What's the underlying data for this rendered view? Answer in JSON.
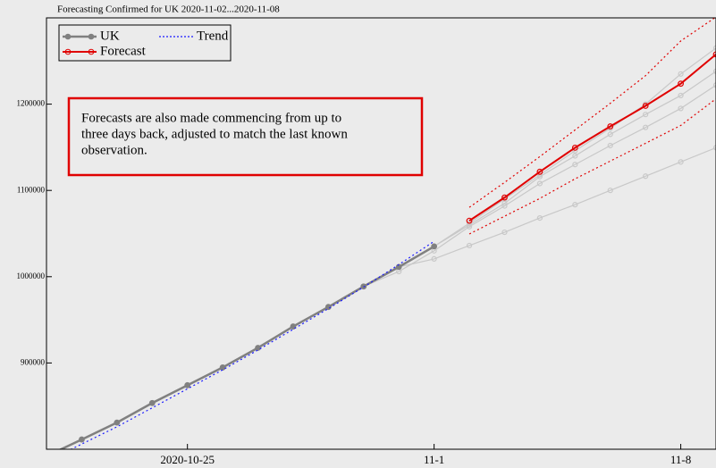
{
  "chart_data": {
    "type": "line",
    "title": "Forecasting Confirmed for UK 2020-11-02...2020-11-08",
    "annotation": [
      "Forecasts are also made commencing from up to",
      "three days back, adjusted to match the last known",
      "observation."
    ],
    "x": [
      "2020-10-21",
      "2020-10-22",
      "2020-10-23",
      "2020-10-24",
      "2020-10-25",
      "2020-10-26",
      "2020-10-27",
      "2020-10-28",
      "2020-10-29",
      "2020-10-30",
      "2020-10-31",
      "2020-11-01",
      "2020-11-02",
      "2020-11-03",
      "2020-11-04",
      "2020-11-05",
      "2020-11-06",
      "2020-11-07",
      "2020-11-08",
      "2020-11-09"
    ],
    "xlim": [
      "2020-10-21",
      "2020-11-09"
    ],
    "xticks": [
      "2020-10-25",
      {
        "value": "2020-11-01",
        "label": "11-1"
      },
      {
        "value": "2020-11-08",
        "label": "11-8"
      }
    ],
    "ylim": [
      800000,
      1300000
    ],
    "yticks": [
      900000,
      1000000,
      1100000,
      1200000
    ],
    "series": [
      {
        "color": "#c8c8c8",
        "marker": true,
        "values": [
          null,
          null,
          null,
          null,
          null,
          null,
          null,
          null,
          null,
          null,
          1011300,
          1020600,
          1036100,
          1051500,
          1068000,
          1083500,
          1100000,
          1116500,
          1133000,
          1149500
        ]
      },
      {
        "color": "#c8c8c8",
        "marker": true,
        "values": [
          null,
          null,
          null,
          null,
          null,
          null,
          null,
          null,
          null,
          988700,
          1006000,
          1030000,
          1058000,
          1082000,
          1108000,
          1130000,
          1152000,
          1173000,
          1195000,
          1222000
        ]
      },
      {
        "color": "#c8c8c8",
        "marker": true,
        "values": [
          null,
          null,
          null,
          null,
          null,
          null,
          null,
          null,
          null,
          null,
          null,
          1035100,
          1060000,
          1085000,
          1116000,
          1140000,
          1165000,
          1188000,
          1210000,
          1238000
        ]
      },
      {
        "color": "#c8c8c8",
        "marker": true,
        "values": [
          null,
          null,
          null,
          null,
          null,
          null,
          null,
          null,
          null,
          null,
          null,
          1035100,
          1062000,
          1090000,
          1118000,
          1146000,
          1172000,
          1200000,
          1235000,
          1265000
        ]
      },
      {
        "name": "UK",
        "color": "#808080",
        "marker": true,
        "width": 2.5,
        "values": [
          792000,
          811300,
          830900,
          853600,
          874200,
          894800,
          917500,
          942300,
          964900,
          988700,
          1011300,
          1035100,
          null,
          null,
          null,
          null,
          null,
          null,
          null,
          null
        ]
      },
      {
        "name": "Trend",
        "color": "#1a1aff",
        "dash": true,
        "values": [
          786000,
          806000,
          826000,
          848000,
          870000,
          892000,
          915000,
          939000,
          963000,
          988000,
          1014000,
          1041000,
          null,
          null,
          null,
          null,
          null,
          null,
          null,
          null
        ]
      },
      {
        "color": "#e00000",
        "dash": true,
        "values": [
          null,
          null,
          null,
          null,
          null,
          null,
          null,
          null,
          null,
          null,
          null,
          null,
          1080400,
          1109300,
          1139200,
          1170100,
          1201000,
          1233000,
          1273200,
          1301000
        ]
      },
      {
        "color": "#e00000",
        "dash": true,
        "values": [
          null,
          null,
          null,
          null,
          null,
          null,
          null,
          null,
          null,
          null,
          null,
          null,
          1049500,
          1070100,
          1090700,
          1113400,
          1134000,
          1154600,
          1175300,
          1206200
        ]
      },
      {
        "name": "Forecast",
        "color": "#e00000",
        "marker": true,
        "width": 2,
        "values": [
          null,
          null,
          null,
          null,
          null,
          null,
          null,
          null,
          null,
          null,
          null,
          null,
          1064900,
          1091800,
          1121600,
          1149500,
          1174200,
          1198000,
          1223700,
          1257700
        ]
      }
    ]
  }
}
